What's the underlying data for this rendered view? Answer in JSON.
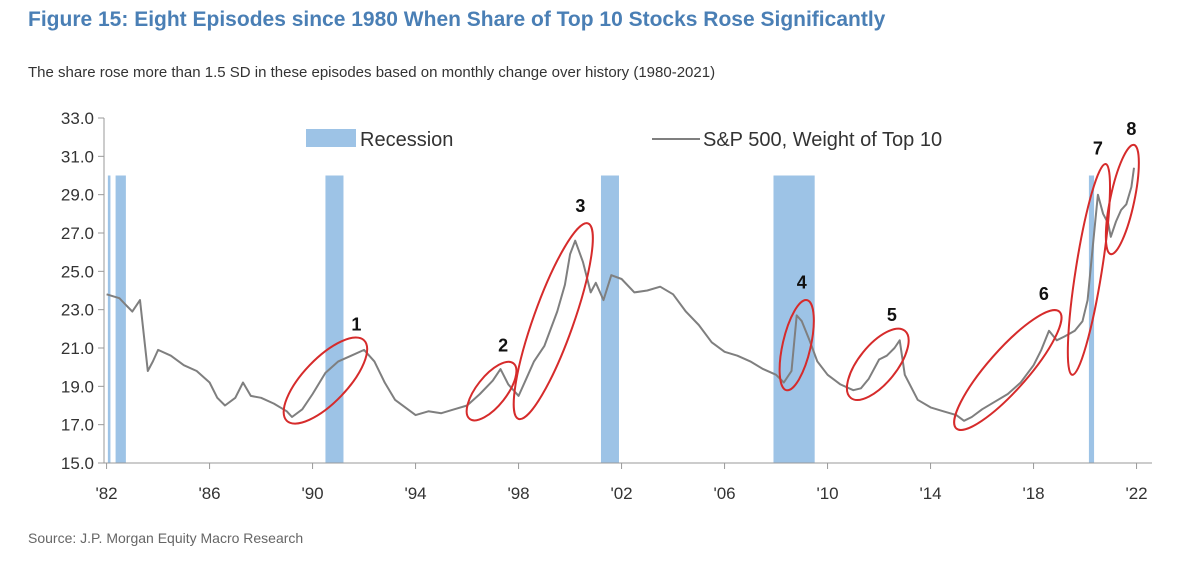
{
  "header": {
    "title": "Figure 15: Eight Episodes since 1980 When Share of Top 10 Stocks Rose Significantly",
    "subtitle": "The share rose more than 1.5 SD in these episodes based on monthly change over history (1980-2021)"
  },
  "footer": {
    "source": "Source: J.P. Morgan Equity Macro Research"
  },
  "chart_data": {
    "type": "line",
    "title": "",
    "xlabel": "",
    "ylabel": "",
    "xlim": [
      1981.9,
      2022.6
    ],
    "ylim": [
      15.0,
      33.0
    ],
    "grid": false,
    "legend_position": "top",
    "y_ticks": [
      "15.0",
      "17.0",
      "19.0",
      "21.0",
      "23.0",
      "25.0",
      "27.0",
      "29.0",
      "31.0",
      "33.0"
    ],
    "x_ticks": [
      {
        "label": "'82",
        "x": 1982
      },
      {
        "label": "'86",
        "x": 1986
      },
      {
        "label": "'90",
        "x": 1990
      },
      {
        "label": "'94",
        "x": 1994
      },
      {
        "label": "'98",
        "x": 1998
      },
      {
        "label": "'02",
        "x": 2002
      },
      {
        "label": "'06",
        "x": 2006
      },
      {
        "label": "'10",
        "x": 2010
      },
      {
        "label": "'14",
        "x": 2014
      },
      {
        "label": "'18",
        "x": 2018
      },
      {
        "label": "'22",
        "x": 2022
      }
    ],
    "recession": {
      "name": "Recession",
      "color": "#9dc3e6",
      "periods": [
        [
          1982.05,
          1982.15
        ],
        [
          1982.35,
          1982.75
        ],
        [
          1990.5,
          1991.2
        ],
        [
          2001.2,
          2001.9
        ],
        [
          2007.9,
          2009.5
        ],
        [
          2020.15,
          2020.35
        ]
      ]
    },
    "series": [
      {
        "name": "S&P 500, Weight of Top 10",
        "color": "#7f7f7f",
        "x": [
          1982.0,
          1982.5,
          1983.0,
          1983.3,
          1983.6,
          1983.8,
          1984.0,
          1984.5,
          1985.0,
          1985.5,
          1986.0,
          1986.3,
          1986.6,
          1987.0,
          1987.3,
          1987.6,
          1988.0,
          1988.5,
          1989.0,
          1989.2,
          1989.6,
          1990.0,
          1990.5,
          1991.0,
          1991.5,
          1992.0,
          1992.4,
          1992.8,
          1993.2,
          1993.6,
          1994.0,
          1994.5,
          1995.0,
          1995.5,
          1996.0,
          1996.5,
          1997.0,
          1997.3,
          1997.6,
          1998.0,
          1998.3,
          1998.6,
          1999.0,
          1999.5,
          1999.8,
          2000.0,
          2000.2,
          2000.5,
          2000.8,
          2001.0,
          2001.3,
          2001.6,
          2002.0,
          2002.5,
          2003.0,
          2003.5,
          2004.0,
          2004.5,
          2005.0,
          2005.5,
          2006.0,
          2006.5,
          2007.0,
          2007.5,
          2008.0,
          2008.3,
          2008.6,
          2008.8,
          2009.0,
          2009.3,
          2009.6,
          2010.0,
          2010.5,
          2011.0,
          2011.3,
          2011.6,
          2012.0,
          2012.3,
          2012.6,
          2012.8,
          2013.0,
          2013.5,
          2014.0,
          2014.5,
          2015.0,
          2015.3,
          2015.6,
          2016.0,
          2016.5,
          2017.0,
          2017.5,
          2018.0,
          2018.3,
          2018.6,
          2018.9,
          2019.2,
          2019.6,
          2019.9,
          2020.1,
          2020.3,
          2020.5,
          2020.7,
          2020.9,
          2021.0,
          2021.2,
          2021.4,
          2021.6,
          2021.8,
          2021.9
        ],
        "values": [
          23.8,
          23.6,
          22.9,
          23.5,
          19.8,
          20.3,
          20.9,
          20.6,
          20.1,
          19.8,
          19.2,
          18.4,
          18.0,
          18.4,
          19.2,
          18.5,
          18.4,
          18.1,
          17.7,
          17.4,
          17.8,
          18.6,
          19.7,
          20.3,
          20.6,
          20.9,
          20.3,
          19.2,
          18.3,
          17.9,
          17.5,
          17.7,
          17.6,
          17.8,
          18.0,
          18.6,
          19.3,
          19.9,
          19.1,
          18.5,
          19.4,
          20.3,
          21.1,
          22.9,
          24.3,
          25.9,
          26.6,
          25.5,
          23.9,
          24.4,
          23.5,
          24.8,
          24.6,
          23.9,
          24.0,
          24.2,
          23.8,
          22.9,
          22.2,
          21.3,
          20.8,
          20.6,
          20.3,
          19.9,
          19.6,
          19.2,
          19.8,
          22.7,
          22.4,
          21.4,
          20.3,
          19.6,
          19.1,
          18.8,
          18.9,
          19.4,
          20.4,
          20.6,
          21.0,
          21.4,
          19.6,
          18.3,
          17.9,
          17.7,
          17.5,
          17.2,
          17.4,
          17.8,
          18.2,
          18.6,
          19.2,
          20.1,
          20.9,
          21.9,
          21.4,
          21.6,
          21.9,
          22.4,
          23.5,
          26.3,
          29.0,
          28.0,
          27.5,
          26.8,
          27.6,
          28.2,
          28.5,
          29.4,
          30.4
        ]
      }
    ],
    "episodes": [
      {
        "label": "1",
        "x1": 1989.0,
        "y1": 17.2,
        "x2": 1992.0,
        "y2": 21.4,
        "rx": 22,
        "lx": 1991.7,
        "ly": 21.7
      },
      {
        "label": "2",
        "x1": 1996.1,
        "y1": 17.3,
        "x2": 1997.8,
        "y2": 20.2,
        "rx": 15,
        "lx": 1997.4,
        "ly": 20.6
      },
      {
        "label": "3",
        "x1": 1998.0,
        "y1": 17.3,
        "x2": 2000.7,
        "y2": 27.5,
        "rx": 20,
        "lx": 2000.4,
        "ly": 27.9
      },
      {
        "label": "4",
        "x1": 2008.4,
        "y1": 18.8,
        "x2": 2009.2,
        "y2": 23.5,
        "rx": 14,
        "lx": 2009.0,
        "ly": 23.9
      },
      {
        "label": "5",
        "x1": 2010.9,
        "y1": 18.4,
        "x2": 2013.0,
        "y2": 21.9,
        "rx": 19,
        "lx": 2012.5,
        "ly": 22.2
      },
      {
        "label": "6",
        "x1": 2015.0,
        "y1": 16.8,
        "x2": 2019.0,
        "y2": 22.9,
        "rx": 20,
        "lx": 2018.4,
        "ly": 23.3
      },
      {
        "label": "7",
        "x1": 2019.5,
        "y1": 19.6,
        "x2": 2020.8,
        "y2": 30.6,
        "rx": 13,
        "lx": 2020.5,
        "ly": 30.9
      },
      {
        "label": "8",
        "x1": 2021.0,
        "y1": 25.9,
        "x2": 2021.9,
        "y2": 31.6,
        "rx": 12,
        "lx": 2021.8,
        "ly": 31.9
      }
    ]
  }
}
